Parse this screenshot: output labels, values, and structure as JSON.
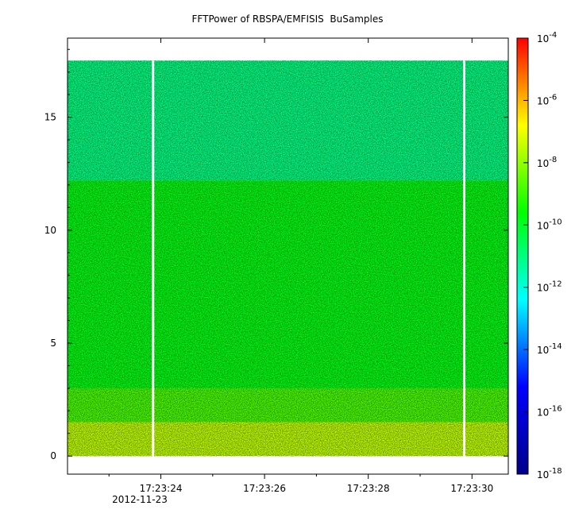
{
  "chart_data": {
    "type": "heatmap",
    "title": "FFTPower of RBSPA/EMFISIS  BuSamples",
    "xlabel": "",
    "ylabel": "",
    "x_ticks": [
      "17:23:24",
      "17:23:26",
      "17:23:28",
      "17:23:30"
    ],
    "x_tick_seconds": [
      24,
      26,
      28,
      30
    ],
    "x_range_seconds": [
      22.2,
      30.7
    ],
    "date_label": "2012-11-23",
    "y_ticks": [
      0,
      5,
      10,
      15
    ],
    "ylim": [
      -0.8,
      18.5
    ],
    "data_ylim": [
      0,
      17.5
    ],
    "colorbar": {
      "scale": "log",
      "range": [
        1e-18,
        0.0001
      ],
      "tick_labels": [
        {
          "base": "10",
          "exp": "-4",
          "value": -4
        },
        {
          "base": "10",
          "exp": "-6",
          "value": -6
        },
        {
          "base": "10",
          "exp": "-8",
          "value": -8
        },
        {
          "base": "10",
          "exp": "-10",
          "value": -10
        },
        {
          "base": "10",
          "exp": "-12",
          "value": -12
        },
        {
          "base": "10",
          "exp": "-14",
          "value": -14
        },
        {
          "base": "10",
          "exp": "-16",
          "value": -16
        },
        {
          "base": "10",
          "exp": "-18",
          "value": -18
        }
      ],
      "colors": [
        "#00008b",
        "#0000ff",
        "#00ffff",
        "#00ff00",
        "#ffff00",
        "#ff0000"
      ]
    },
    "gaps_seconds": [
      23.85,
      29.85
    ],
    "band_levels": [
      {
        "y_from": 12.2,
        "y_to": 17.5,
        "log_power": -11.0
      },
      {
        "y_from": 3.0,
        "y_to": 12.2,
        "log_power": -9.8
      },
      {
        "y_from": 1.5,
        "y_to": 3.0,
        "log_power": -8.8
      },
      {
        "y_from": 0.0,
        "y_to": 1.5,
        "log_power": -7.5
      }
    ],
    "grid": false
  }
}
